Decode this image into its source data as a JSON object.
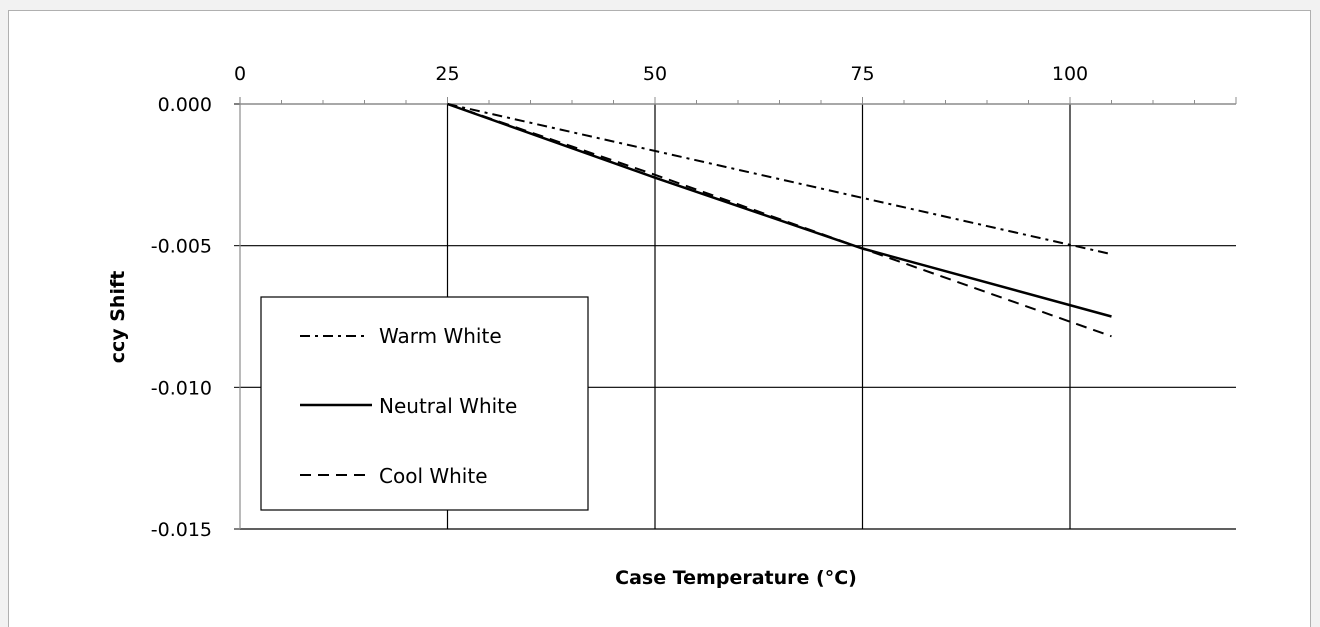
{
  "chart_data": {
    "type": "line",
    "title": "",
    "xlabel": "Case Temperature (°C)",
    "ylabel": "ccy Shift",
    "xlim": [
      0,
      120
    ],
    "ylim": [
      -0.015,
      0.0
    ],
    "x_ticks": [
      0,
      25,
      50,
      75,
      100
    ],
    "x_tick_labels": [
      "0",
      "25",
      "50",
      "75",
      "100"
    ],
    "y_ticks": [
      0.0,
      -0.005,
      -0.01,
      -0.015
    ],
    "y_tick_labels": [
      "0.000",
      "-0.005",
      "-0.010",
      "-0.015"
    ],
    "x_axis_position": "top",
    "grid": true,
    "legend_position": "left",
    "series": [
      {
        "name": "Warm White",
        "line_style": "dash-dot",
        "x": [
          25,
          105
        ],
        "y": [
          0.0,
          -0.0053
        ]
      },
      {
        "name": "Neutral White",
        "line_style": "solid",
        "x": [
          25,
          50,
          75,
          105
        ],
        "y": [
          0.0,
          -0.0026,
          -0.0051,
          -0.0075
        ]
      },
      {
        "name": "Cool White",
        "line_style": "dashed",
        "x": [
          25,
          50,
          75,
          105
        ],
        "y": [
          0.0,
          -0.0025,
          -0.0051,
          -0.0082
        ]
      }
    ]
  }
}
